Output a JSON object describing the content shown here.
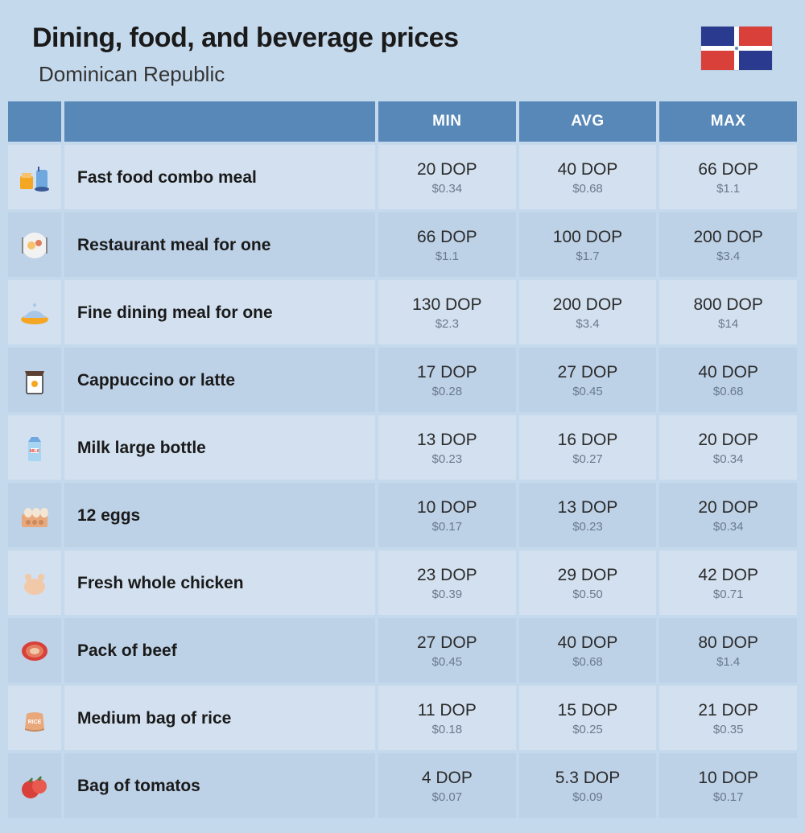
{
  "header": {
    "title": "Dining, food, and beverage prices",
    "subtitle": "Dominican Republic"
  },
  "table": {
    "columns": [
      "MIN",
      "AVG",
      "MAX"
    ],
    "colors": {
      "header_bg": "#5788b8",
      "row_odd_bg": "#d2e0ef",
      "row_even_bg": "#bdd1e7",
      "page_bg": "#c5d9ed",
      "usd_color": "#6a7a8c",
      "text_color": "#1a1a1a"
    },
    "rows": [
      {
        "icon": "fast-food-icon",
        "label": "Fast food combo meal",
        "min_dop": "20 DOP",
        "min_usd": "$0.34",
        "avg_dop": "40 DOP",
        "avg_usd": "$0.68",
        "max_dop": "66 DOP",
        "max_usd": "$1.1"
      },
      {
        "icon": "restaurant-meal-icon",
        "label": "Restaurant meal for one",
        "min_dop": "66 DOP",
        "min_usd": "$1.1",
        "avg_dop": "100 DOP",
        "avg_usd": "$1.7",
        "max_dop": "200 DOP",
        "max_usd": "$3.4"
      },
      {
        "icon": "fine-dining-icon",
        "label": "Fine dining meal for one",
        "min_dop": "130 DOP",
        "min_usd": "$2.3",
        "avg_dop": "200 DOP",
        "avg_usd": "$3.4",
        "max_dop": "800 DOP",
        "max_usd": "$14"
      },
      {
        "icon": "coffee-icon",
        "label": "Cappuccino or latte",
        "min_dop": "17 DOP",
        "min_usd": "$0.28",
        "avg_dop": "27 DOP",
        "avg_usd": "$0.45",
        "max_dop": "40 DOP",
        "max_usd": "$0.68"
      },
      {
        "icon": "milk-icon",
        "label": "Milk large bottle",
        "min_dop": "13 DOP",
        "min_usd": "$0.23",
        "avg_dop": "16 DOP",
        "avg_usd": "$0.27",
        "max_dop": "20 DOP",
        "max_usd": "$0.34"
      },
      {
        "icon": "eggs-icon",
        "label": "12 eggs",
        "min_dop": "10 DOP",
        "min_usd": "$0.17",
        "avg_dop": "13 DOP",
        "avg_usd": "$0.23",
        "max_dop": "20 DOP",
        "max_usd": "$0.34"
      },
      {
        "icon": "chicken-icon",
        "label": "Fresh whole chicken",
        "min_dop": "23 DOP",
        "min_usd": "$0.39",
        "avg_dop": "29 DOP",
        "avg_usd": "$0.50",
        "max_dop": "42 DOP",
        "max_usd": "$0.71"
      },
      {
        "icon": "beef-icon",
        "label": "Pack of beef",
        "min_dop": "27 DOP",
        "min_usd": "$0.45",
        "avg_dop": "40 DOP",
        "avg_usd": "$0.68",
        "max_dop": "80 DOP",
        "max_usd": "$1.4"
      },
      {
        "icon": "rice-icon",
        "label": "Medium bag of rice",
        "min_dop": "11 DOP",
        "min_usd": "$0.18",
        "avg_dop": "15 DOP",
        "avg_usd": "$0.25",
        "max_dop": "21 DOP",
        "max_usd": "$0.35"
      },
      {
        "icon": "tomato-icon",
        "label": "Bag of tomatos",
        "min_dop": "4 DOP",
        "min_usd": "$0.07",
        "avg_dop": "5.3 DOP",
        "avg_usd": "$0.09",
        "max_dop": "10 DOP",
        "max_usd": "$0.17"
      }
    ]
  }
}
